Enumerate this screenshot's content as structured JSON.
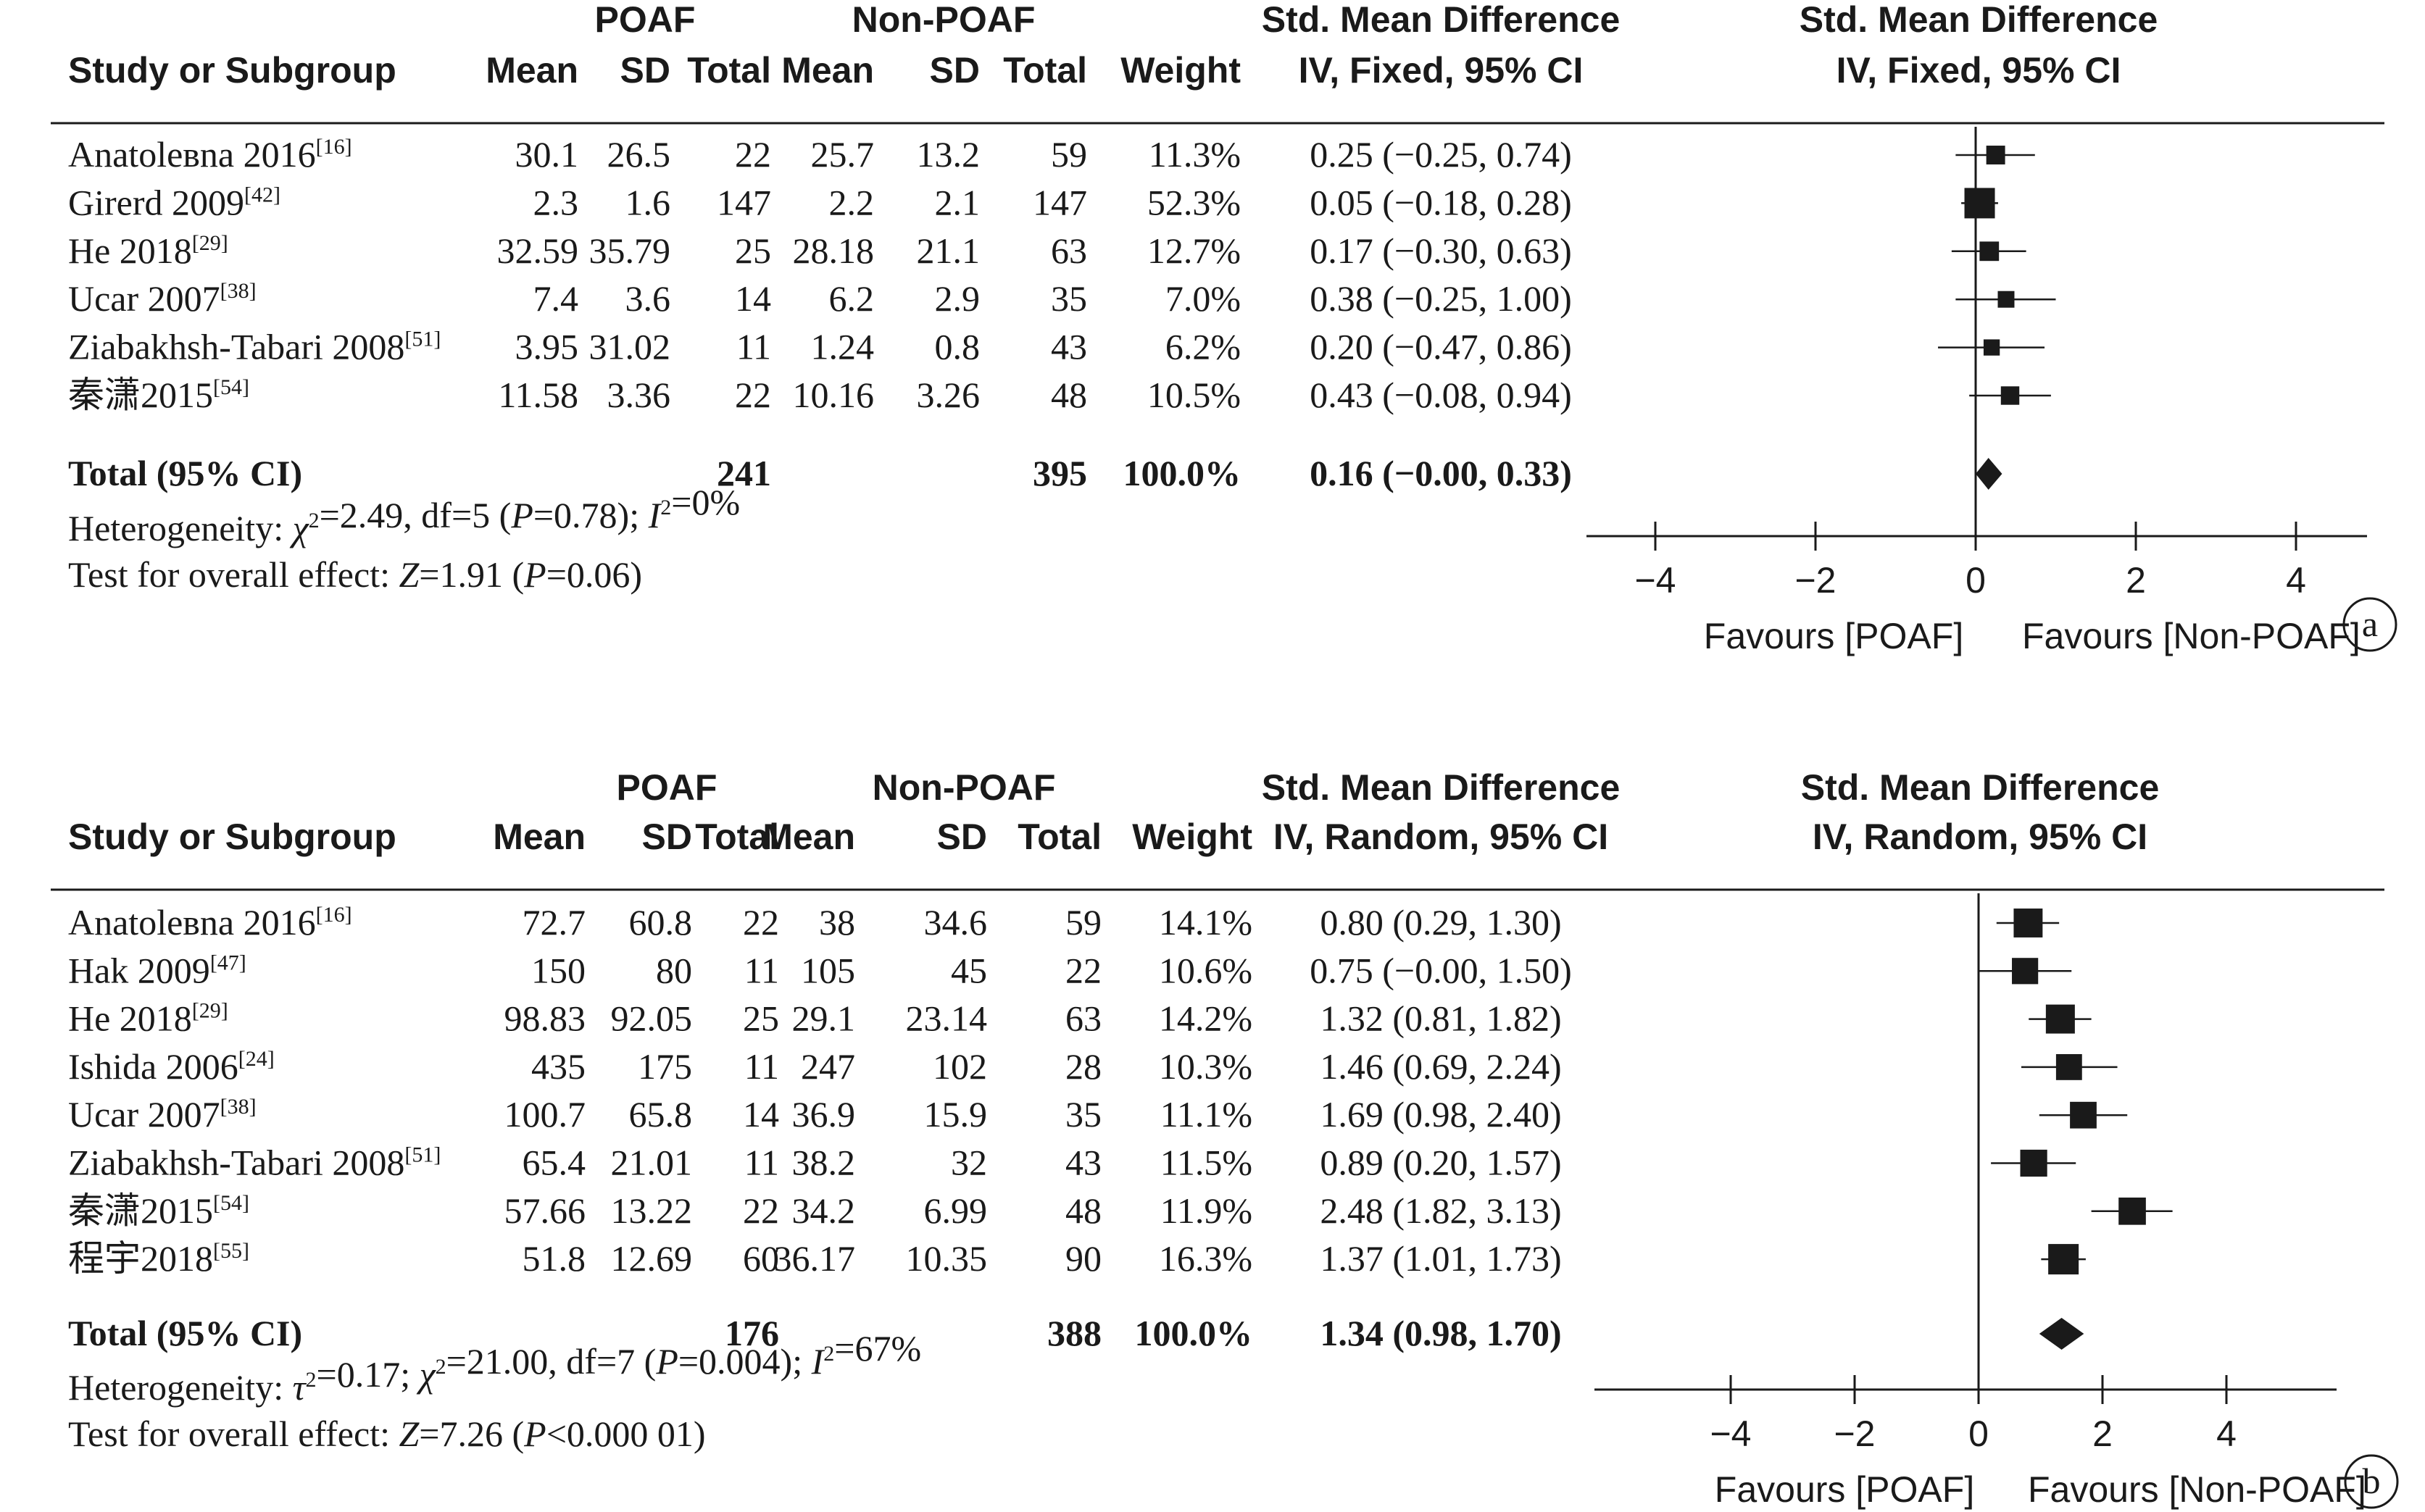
{
  "chart_data": [
    {
      "type": "table",
      "panel_label": "a",
      "group_headers": {
        "poaf": "POAF",
        "non_poaf": "Non-POAF",
        "smd_col": "Std. Mean Difference",
        "smd_plot": "Std. Mean Difference"
      },
      "columns": {
        "study": "Study or Subgroup",
        "mean1": "Mean",
        "sd1": "SD",
        "total1": "Total",
        "mean2": "Mean",
        "sd2": "SD",
        "total2": "Total",
        "weight": "Weight",
        "ci": "IV, Fixed, 95% CI",
        "plot": "IV, Fixed, 95% CI"
      },
      "studies": [
        {
          "name": "Anatolевna 2016",
          "ref": "[16]",
          "mean1": "30.1",
          "sd1": "26.5",
          "total1": "22",
          "mean2": "25.7",
          "sd2": "13.2",
          "total2": "59",
          "weight": "11.3%",
          "ci": "0.25 (−0.25, 0.74)",
          "est": 0.25,
          "lo": -0.25,
          "hi": 0.74,
          "w": 11.3
        },
        {
          "name": "Girerd 2009",
          "ref": "[42]",
          "mean1": "2.3",
          "sd1": "1.6",
          "total1": "147",
          "mean2": "2.2",
          "sd2": "2.1",
          "total2": "147",
          "weight": "52.3%",
          "ci": "0.05 (−0.18, 0.28)",
          "est": 0.05,
          "lo": -0.18,
          "hi": 0.28,
          "w": 52.3
        },
        {
          "name": "He 2018",
          "ref": "[29]",
          "mean1": "32.59",
          "sd1": "35.79",
          "total1": "25",
          "mean2": "28.18",
          "sd2": "21.1",
          "total2": "63",
          "weight": "12.7%",
          "ci": "0.17 (−0.30, 0.63)",
          "est": 0.17,
          "lo": -0.3,
          "hi": 0.63,
          "w": 12.7
        },
        {
          "name": "Ucar 2007",
          "ref": "[38]",
          "mean1": "7.4",
          "sd1": "3.6",
          "total1": "14",
          "mean2": "6.2",
          "sd2": "2.9",
          "total2": "35",
          "weight": "7.0%",
          "ci": "0.38 (−0.25, 1.00)",
          "est": 0.38,
          "lo": -0.25,
          "hi": 1.0,
          "w": 7.0
        },
        {
          "name": "Ziabakhsh-Tabari 2008",
          "ref": "[51]",
          "mean1": "3.95",
          "sd1": "31.02",
          "total1": "11",
          "mean2": "1.24",
          "sd2": "0.8",
          "total2": "43",
          "weight": "6.2%",
          "ci": "0.20 (−0.47, 0.86)",
          "est": 0.2,
          "lo": -0.47,
          "hi": 0.86,
          "w": 6.2
        },
        {
          "name": "秦潇2015",
          "ref": "[54]",
          "mean1": "11.58",
          "sd1": "3.36",
          "total1": "22",
          "mean2": "10.16",
          "sd2": "3.26",
          "total2": "48",
          "weight": "10.5%",
          "ci": "0.43 (−0.08, 0.94)",
          "est": 0.43,
          "lo": -0.08,
          "hi": 0.94,
          "w": 10.5
        }
      ],
      "total": {
        "label": "Total (95% CI)",
        "total1": "241",
        "total2": "395",
        "weight": "100.0%",
        "ci": "0.16 (−0.00, 0.33)",
        "est": 0.16,
        "lo": -0.0,
        "hi": 0.33
      },
      "heterogeneity": "Heterogeneity: χ²=2.49, df=5 (P=0.78); I²=0%",
      "overall_effect": "Test for overall effect: Z=1.91 (P=0.06)",
      "x_ticks": [
        "−4",
        "−2",
        "0",
        "2",
        "4"
      ],
      "x_tick_values": [
        -4,
        -2,
        0,
        2,
        4
      ],
      "xlim": [
        -4.9,
        4.9
      ],
      "favours_left": "Favours [POAF]",
      "favours_right": "Favours [Non-POAF]"
    },
    {
      "type": "table",
      "panel_label": "b",
      "group_headers": {
        "poaf": "POAF",
        "non_poaf": "Non-POAF",
        "smd_col": "Std. Mean Difference",
        "smd_plot": "Std. Mean Difference"
      },
      "columns": {
        "study": "Study or Subgroup",
        "mean1": "Mean",
        "sd1": "SD",
        "total1": "Total",
        "mean2": "Mean",
        "sd2": "SD",
        "total2": "Total",
        "weight": "Weight",
        "ci": "IV, Random, 95% CI",
        "plot": "IV, Random, 95% CI"
      },
      "studies": [
        {
          "name": "Anatolевna 2016",
          "ref": "[16]",
          "mean1": "72.7",
          "sd1": "60.8",
          "total1": "22",
          "mean2": "38",
          "sd2": "34.6",
          "total2": "59",
          "weight": "14.1%",
          "ci": "0.80 (0.29, 1.30)",
          "est": 0.8,
          "lo": 0.29,
          "hi": 1.3,
          "w": 14.1
        },
        {
          "name": "Hak 2009",
          "ref": "[47]",
          "mean1": "150",
          "sd1": "80",
          "total1": "11",
          "mean2": "105",
          "sd2": "45",
          "total2": "22",
          "weight": "10.6%",
          "ci": "0.75 (−0.00, 1.50)",
          "est": 0.75,
          "lo": -0.0,
          "hi": 1.5,
          "w": 10.6
        },
        {
          "name": "He 2018",
          "ref": "[29]",
          "mean1": "98.83",
          "sd1": "92.05",
          "total1": "25",
          "mean2": "29.1",
          "sd2": "23.14",
          "total2": "63",
          "weight": "14.2%",
          "ci": "1.32 (0.81, 1.82)",
          "est": 1.32,
          "lo": 0.81,
          "hi": 1.82,
          "w": 14.2
        },
        {
          "name": "Ishida 2006",
          "ref": "[24]",
          "mean1": "435",
          "sd1": "175",
          "total1": "11",
          "mean2": "247",
          "sd2": "102",
          "total2": "28",
          "weight": "10.3%",
          "ci": "1.46 (0.69, 2.24)",
          "est": 1.46,
          "lo": 0.69,
          "hi": 2.24,
          "w": 10.3
        },
        {
          "name": "Ucar 2007",
          "ref": "[38]",
          "mean1": "100.7",
          "sd1": "65.8",
          "total1": "14",
          "mean2": "36.9",
          "sd2": "15.9",
          "total2": "35",
          "weight": "11.1%",
          "ci": "1.69 (0.98, 2.40)",
          "est": 1.69,
          "lo": 0.98,
          "hi": 2.4,
          "w": 11.1
        },
        {
          "name": "Ziabakhsh-Tabari 2008",
          "ref": "[51]",
          "mean1": "65.4",
          "sd1": "21.01",
          "total1": "11",
          "mean2": "38.2",
          "sd2": "32",
          "total2": "43",
          "weight": "11.5%",
          "ci": "0.89 (0.20, 1.57)",
          "est": 0.89,
          "lo": 0.2,
          "hi": 1.57,
          "w": 11.5
        },
        {
          "name": "秦潇2015",
          "ref": "[54]",
          "mean1": "57.66",
          "sd1": "13.22",
          "total1": "22",
          "mean2": "34.2",
          "sd2": "6.99",
          "total2": "48",
          "weight": "11.9%",
          "ci": "2.48 (1.82, 3.13)",
          "est": 2.48,
          "lo": 1.82,
          "hi": 3.13,
          "w": 11.9
        },
        {
          "name": "程宇2018",
          "ref": "[55]",
          "mean1": "51.8",
          "sd1": "12.69",
          "total1": "60",
          "mean2": "36.17",
          "sd2": "10.35",
          "total2": "90",
          "weight": "16.3%",
          "ci": "1.37 (1.01, 1.73)",
          "est": 1.37,
          "lo": 1.01,
          "hi": 1.73,
          "w": 16.3
        }
      ],
      "total": {
        "label": "Total (95% CI)",
        "total1": "176",
        "total2": "388",
        "weight": "100.0%",
        "ci": "1.34 (0.98, 1.70)",
        "est": 1.34,
        "lo": 0.98,
        "hi": 1.7
      },
      "heterogeneity": "Heterogeneity: τ²=0.17; χ²=21.00, df=7 (P=0.004); I²=67%",
      "overall_effect": "Test for overall effect: Z=7.26 (P<0.000 01)",
      "x_ticks": [
        "−4",
        "−2",
        "0",
        "2",
        "4"
      ],
      "x_tick_values": [
        -4,
        -2,
        0,
        2,
        4
      ],
      "xlim": [
        -6.2,
        6.2
      ],
      "favours_left": "Favours [POAF]",
      "favours_right": "Favours [Non-POAF]"
    }
  ]
}
